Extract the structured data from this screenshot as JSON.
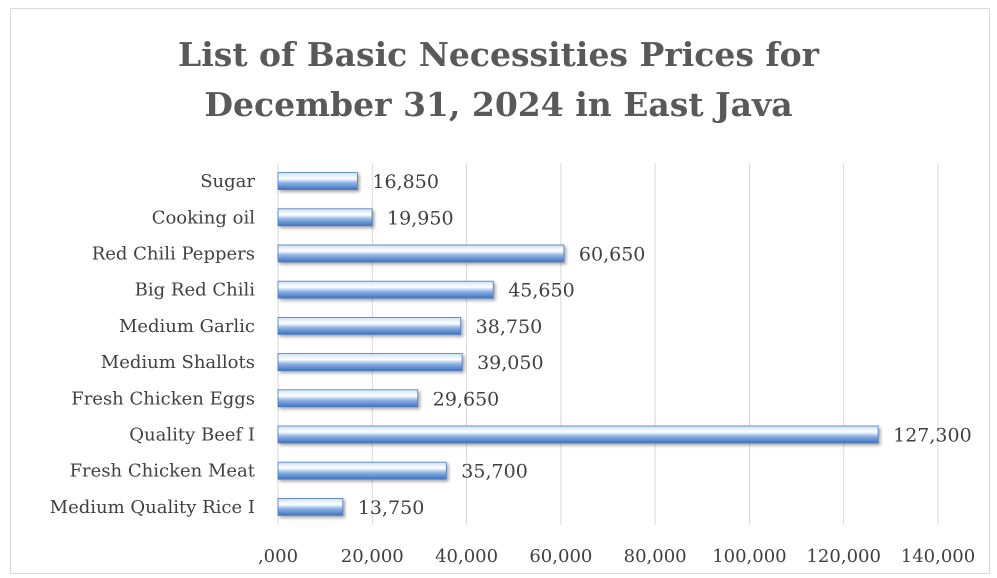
{
  "chart_data": {
    "type": "bar",
    "orientation": "horizontal",
    "title_lines": [
      "List of Basic Necessities Prices for",
      "December 31, 2024 in East Java"
    ],
    "categories": [
      "Sugar",
      "Cooking oil",
      "Red Chili Peppers",
      "Big Red Chili",
      "Medium Garlic",
      "Medium Shallots",
      "Fresh Chicken Eggs",
      "Quality Beef I",
      "Fresh Chicken Meat",
      "Medium Quality Rice I"
    ],
    "values": [
      16850,
      19950,
      60650,
      45650,
      38750,
      39050,
      29650,
      127300,
      35700,
      13750
    ],
    "value_labels": [
      "16,850",
      "19,950",
      "60,650",
      "45,650",
      "38,750",
      "39,050",
      "29,650",
      "127,300",
      "35,700",
      "13,750"
    ],
    "x_ticks": [
      0,
      20000,
      40000,
      60000,
      80000,
      100000,
      120000,
      140000
    ],
    "x_tick_labels": [
      ",000",
      "20,000",
      "40,000",
      "60,000",
      "80,000",
      "100,000",
      "120,000",
      "140,000"
    ],
    "xlim": [
      0,
      140000
    ],
    "grid": true,
    "legend": "none",
    "bar_color": "#5b8fd6"
  }
}
